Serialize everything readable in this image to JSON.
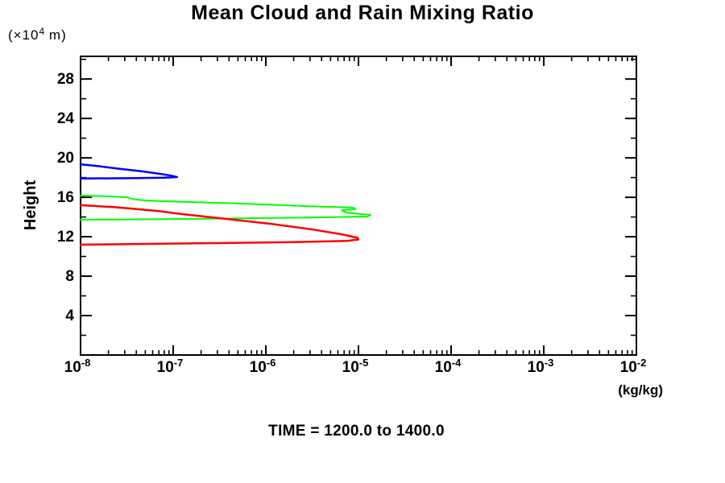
{
  "chart_data": {
    "type": "line",
    "title": "Mean Cloud and Rain Mixing Ratio",
    "y_axis_title": "Height",
    "y_unit": {
      "prefix": "(×10",
      "exponent": "4",
      "suffix": " m)"
    },
    "x_unit_label": "(kg/kg)",
    "caption": "TIME = 1200.0 to 1400.0",
    "x_scale": "log",
    "x_log_min": -8,
    "x_log_max": -2,
    "x_tick_label_base": "10",
    "x_major_tick_exponents": [
      -8,
      -7,
      -6,
      -5,
      -4,
      -3,
      -2
    ],
    "ylim": [
      0,
      30.3
    ],
    "y_major_ticks": [
      4,
      8,
      12,
      16,
      20,
      24,
      28
    ],
    "y_minor_ticks": [
      2,
      6,
      10,
      14,
      18,
      22,
      26,
      30
    ],
    "grid": false,
    "legend": "none",
    "axis_color": "#000000",
    "series": [
      {
        "name": "blue-profile",
        "color": "#0000ff",
        "stroke_width": 2.5,
        "points": [
          [
            1e-08,
            19.35
          ],
          [
            1.6e-08,
            19.15
          ],
          [
            2.6e-08,
            18.9
          ],
          [
            4.5e-08,
            18.65
          ],
          [
            7e-08,
            18.4
          ],
          [
            9.5e-08,
            18.2
          ],
          [
            1.1e-07,
            18.05
          ],
          [
            8e-08,
            17.98
          ],
          [
            4e-08,
            17.95
          ],
          [
            1e-08,
            17.9
          ]
        ]
      },
      {
        "name": "green-profile",
        "color": "#00ff00",
        "stroke_width": 2,
        "points": [
          [
            1e-08,
            16.17
          ],
          [
            2.2e-08,
            16.08
          ],
          [
            3.2e-08,
            16.0
          ],
          [
            3.6e-08,
            15.85
          ],
          [
            4.4e-08,
            15.72
          ],
          [
            7e-08,
            15.62
          ],
          [
            1.6e-07,
            15.52
          ],
          [
            4e-07,
            15.4
          ],
          [
            1.1e-06,
            15.25
          ],
          [
            2.8e-06,
            15.1
          ],
          [
            6e-06,
            15.0
          ],
          [
            8.7e-06,
            14.95
          ],
          [
            9.3e-06,
            14.8
          ],
          [
            6.6e-06,
            14.68
          ],
          [
            7.2e-06,
            14.5
          ],
          [
            8e-06,
            14.4
          ],
          [
            1.35e-05,
            14.22
          ],
          [
            1.25e-05,
            14.05
          ],
          [
            3e-06,
            13.95
          ],
          [
            6e-07,
            13.88
          ],
          [
            8e-08,
            13.78
          ],
          [
            1e-08,
            13.72
          ]
        ]
      },
      {
        "name": "red-profile",
        "color": "#ff0000",
        "stroke_width": 2.5,
        "points": [
          [
            1e-08,
            15.2
          ],
          [
            2.3e-08,
            15.0
          ],
          [
            6.7e-08,
            14.62
          ],
          [
            1.2e-07,
            14.32
          ],
          [
            3e-07,
            13.9
          ],
          [
            1.1e-06,
            13.32
          ],
          [
            3.3e-06,
            12.72
          ],
          [
            7e-06,
            12.2
          ],
          [
            9.8e-06,
            11.88
          ],
          [
            1e-05,
            11.72
          ],
          [
            7.5e-06,
            11.58
          ],
          [
            2e-06,
            11.45
          ],
          [
            3e-07,
            11.35
          ],
          [
            1e-08,
            11.2
          ]
        ]
      }
    ]
  }
}
